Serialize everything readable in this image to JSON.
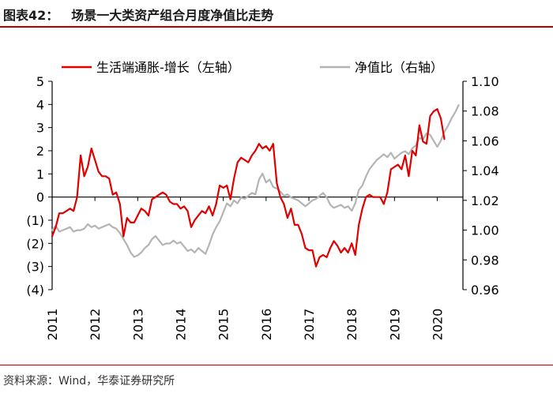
{
  "figure": {
    "title_number": "图表42：",
    "title_text": "场景一大类资产组合月度净值比走势",
    "source": "资料来源：Wind，华泰证券研究所"
  },
  "chart_data": {
    "type": "line",
    "title": "场景一大类资产组合月度净值比走势",
    "legend": {
      "placement": "top"
    },
    "x_ticks": [
      "2011",
      "2012",
      "2013",
      "2014",
      "2015",
      "2016",
      "2017",
      "2018",
      "2019",
      "2020"
    ],
    "x_start": 2011.0,
    "x_step": 0.08333,
    "left_axis": {
      "range": [
        -4,
        5
      ],
      "ticks": [
        5,
        4,
        3,
        2,
        1,
        0,
        -1,
        -2,
        -3,
        -4
      ],
      "tick_labels": [
        "5",
        "4",
        "3",
        "2",
        "1",
        "0",
        "(1)",
        "(2)",
        "(3)",
        "(4)"
      ]
    },
    "right_axis": {
      "range": [
        0.96,
        1.1
      ],
      "ticks": [
        1.1,
        1.08,
        1.06,
        1.04,
        1.02,
        1.0,
        0.98,
        0.96
      ],
      "tick_labels": [
        "1.10",
        "1.08",
        "1.06",
        "1.04",
        "1.02",
        "1.00",
        "0.98",
        "0.96"
      ]
    },
    "grid": false,
    "series": [
      {
        "name": "生活端通胀-增长（左轴）",
        "axis": "left",
        "color": "#e00000",
        "values": [
          -1.7,
          -1.3,
          -0.7,
          -0.7,
          -0.6,
          -0.5,
          -0.6,
          0.0,
          1.8,
          0.9,
          1.3,
          2.1,
          1.6,
          1.1,
          0.9,
          0.9,
          0.8,
          0.1,
          0.2,
          -0.3,
          -1.7,
          -0.9,
          -1.1,
          -1.1,
          -0.8,
          -0.5,
          -0.6,
          -0.8,
          -0.1,
          0.0,
          0.1,
          0.2,
          0.1,
          -0.2,
          -0.3,
          -0.3,
          -0.5,
          -0.4,
          -0.6,
          -1.3,
          -1.0,
          -0.8,
          -0.6,
          -0.7,
          -0.4,
          -0.8,
          -0.3,
          0.5,
          0.4,
          0.5,
          -0.1,
          0.8,
          1.5,
          1.7,
          1.6,
          1.5,
          1.8,
          2.0,
          2.3,
          2.1,
          2.2,
          2.0,
          2.3,
          0.6,
          0.0,
          -0.3,
          -0.9,
          -0.5,
          -1.2,
          -1.2,
          -1.6,
          -2.2,
          -2.3,
          -2.3,
          -3.0,
          -2.6,
          -2.5,
          -2.6,
          -2.2,
          -1.9,
          -2.1,
          -2.4,
          -2.2,
          -2.4,
          -2.0,
          -2.5,
          -1.2,
          -0.5,
          0.0,
          0.1,
          0.0,
          0.0,
          0.0,
          -0.3,
          0.2,
          1.2,
          1.3,
          1.4,
          1.2,
          1.8,
          0.9,
          2.0,
          1.8,
          3.1,
          2.4,
          2.3,
          3.5,
          3.7,
          3.8,
          3.4,
          2.5
        ]
      },
      {
        "name": "净值比（右轴）",
        "axis": "right",
        "color": "#b4b4b4",
        "values": [
          1.0,
          1.003,
          0.999,
          1.0,
          1.001,
          1.002,
          0.999,
          1.0,
          1.0,
          1.001,
          1.004,
          1.002,
          1.003,
          1.001,
          1.002,
          1.003,
          1.004,
          1.002,
          1.001,
          0.998,
          0.994,
          0.99,
          0.985,
          0.982,
          0.983,
          0.985,
          0.988,
          0.99,
          0.994,
          0.996,
          0.993,
          0.99,
          0.991,
          0.991,
          0.993,
          0.991,
          0.992,
          0.989,
          0.986,
          0.987,
          0.985,
          0.988,
          0.986,
          0.984,
          0.99,
          0.997,
          1.002,
          1.006,
          1.012,
          1.018,
          1.016,
          1.02,
          1.018,
          1.022,
          1.021,
          1.023,
          1.025,
          1.024,
          1.034,
          1.038,
          1.032,
          1.034,
          1.029,
          1.028,
          1.026,
          1.023,
          1.024,
          1.022,
          1.021,
          1.02,
          1.018,
          1.016,
          1.018,
          1.02,
          1.021,
          1.023,
          1.025,
          1.022,
          1.017,
          1.015,
          1.016,
          1.017,
          1.015,
          1.016,
          1.013,
          1.018,
          1.027,
          1.03,
          1.036,
          1.041,
          1.044,
          1.047,
          1.049,
          1.051,
          1.049,
          1.052,
          1.048,
          1.05,
          1.052,
          1.053,
          1.051,
          1.055,
          1.057,
          1.062,
          1.061,
          1.065,
          1.064,
          1.06,
          1.056,
          1.06,
          1.066,
          1.07,
          1.075,
          1.079,
          1.084
        ]
      }
    ]
  }
}
